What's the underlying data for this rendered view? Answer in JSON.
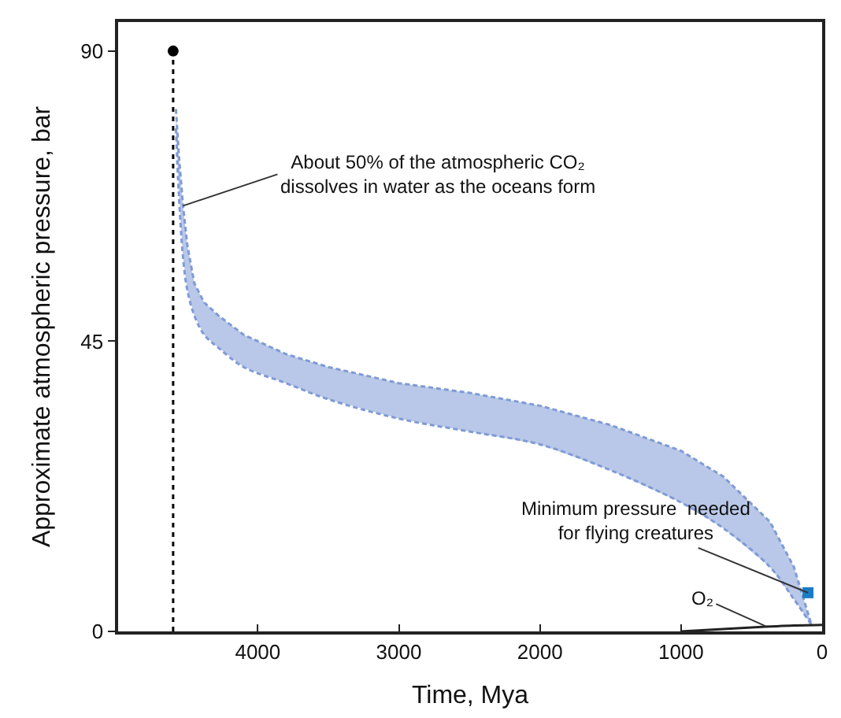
{
  "chart_data": {
    "type": "line",
    "xlabel": "Time, Mya",
    "ylabel": "Approximate atmospheric pressure, bar",
    "xlim": [
      4990,
      0
    ],
    "xticks": [
      4000,
      3000,
      2000,
      1000,
      0
    ],
    "ylim": [
      0,
      94.5
    ],
    "yticks": [
      0,
      45,
      90
    ],
    "series": [
      {
        "color": "#7f9bd6",
        "line_style": "dashed",
        "x": [
          4580,
          4560,
          4530,
          4500,
          4450,
          4380,
          4280,
          4100,
          3800,
          3500,
          3000,
          2500,
          2000,
          1500,
          1000,
          700,
          370,
          200,
          75
        ],
        "values": [
          81,
          74,
          66,
          60,
          54,
          51,
          49,
          46,
          43,
          41,
          38.5,
          37,
          35,
          32,
          28,
          24,
          17,
          10,
          1
        ],
        "upper": [
          81,
          74,
          66,
          60,
          54,
          51,
          49,
          46,
          43,
          41,
          38.5,
          37,
          35,
          32,
          28,
          24,
          17,
          10,
          1
        ],
        "lower": [
          78,
          68,
          58,
          53,
          49,
          46,
          44,
          41,
          38.5,
          36,
          33,
          31,
          29,
          25,
          20,
          16,
          10,
          5,
          1
        ]
      },
      {
        "color": "#7f9bd6",
        "line_style": "dashed",
        "x": [
          4580,
          4560,
          4530,
          4500,
          4450,
          4380,
          4280,
          4100,
          3800,
          3500,
          3000,
          2500,
          2000,
          1500,
          1000,
          700,
          370,
          200,
          75
        ],
        "values": [
          78,
          68,
          58,
          53,
          49,
          46,
          44,
          41,
          38.5,
          36,
          33,
          31,
          29,
          25,
          20,
          16,
          10,
          5,
          1
        ]
      },
      {
        "type": "scatter",
        "color": "#000000",
        "marker": "circle",
        "x": [
          4600
        ],
        "values": [
          90
        ]
      },
      {
        "type": "scatter",
        "color": "#1a7cc4",
        "marker": "square",
        "x": [
          100
        ],
        "values": [
          6
        ]
      },
      {
        "type": "line",
        "color": "#222222",
        "line_style": "solid",
        "x": [
          1000,
          500,
          200,
          0
        ],
        "values": [
          0,
          0.6,
          0.9,
          1
        ]
      }
    ],
    "ref_lines": [
      {
        "axis": "x",
        "value": 4600,
        "color": "#000000",
        "line_style": "dotted"
      }
    ],
    "annotations": [
      {
        "text": "About 50% of the atmospheric CO₂\ndissolves in water as the oceans form",
        "x": 4530,
        "y": 66
      },
      {
        "text": "Minimum pressure  needed\nfor flying creatures",
        "x": 100,
        "y": 6
      },
      {
        "text": "O₂",
        "x": 400,
        "y": 0.8
      }
    ]
  }
}
